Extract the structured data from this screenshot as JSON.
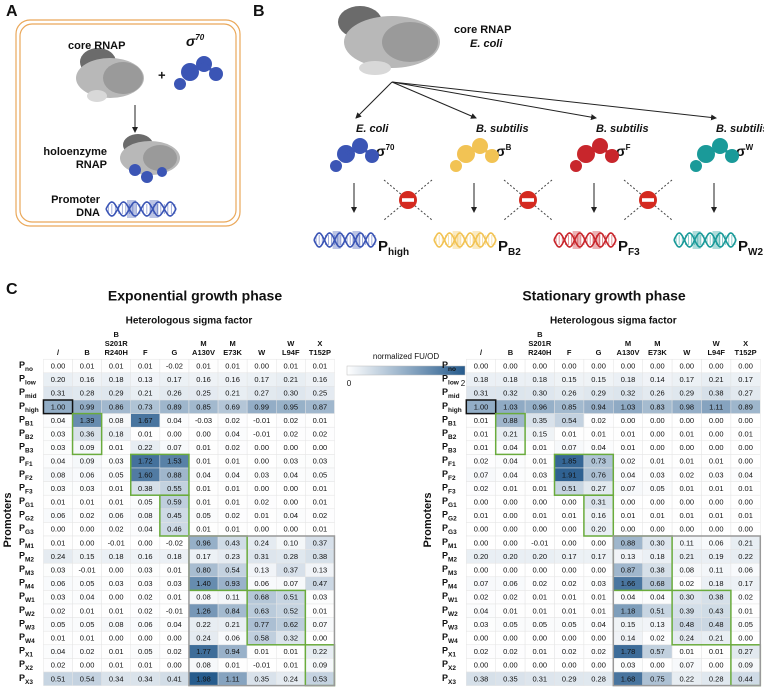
{
  "panels": {
    "a": {
      "letter": "A",
      "core": "core RNAP",
      "sigma": {
        "main": "σ",
        "sup": "70"
      },
      "plus": "+",
      "holoenzyme": [
        "holoenzyme",
        "RNAP"
      ],
      "promoter": [
        "Promoter",
        "DNA"
      ]
    },
    "b": {
      "letter": "B",
      "core": [
        "core RNAP",
        "E. coli"
      ],
      "sigmas": [
        {
          "species": "E. coli",
          "main": "σ",
          "sup": "70",
          "promoter": "P",
          "promoter_sub": "high",
          "color": "#3b55b5"
        },
        {
          "species": "B. subtilis",
          "main": "σ",
          "sup": "B",
          "promoter": "P",
          "promoter_sub": "B2",
          "color": "#f2c354"
        },
        {
          "species": "B. subtilis",
          "main": "σ",
          "sup": "F",
          "promoter": "P",
          "promoter_sub": "F3",
          "color": "#c8262c"
        },
        {
          "species": "B. subtilis",
          "main": "σ",
          "sup": "W",
          "promoter": "P",
          "promoter_sub": "W2",
          "color": "#1a9a99"
        }
      ]
    }
  },
  "c": {
    "letter": "C",
    "colorbar": {
      "label": "normalized FU/OD",
      "min": 0,
      "max": 2
    },
    "columns": [
      [
        "/"
      ],
      [
        "B"
      ],
      [
        "B",
        "S201R",
        "R240H"
      ],
      [
        "F"
      ],
      [
        "G"
      ],
      [
        "M",
        "A130V"
      ],
      [
        "M",
        "E73K"
      ],
      [
        "W"
      ],
      [
        "W",
        "L94F"
      ],
      [
        "X",
        "T152P"
      ]
    ],
    "tables": [
      {
        "title": "Exponential growth phase",
        "subtitle": "Heterologous sigma factor",
        "axis": "Promoters",
        "rows": [
          {
            "label": "P",
            "sub": "no",
            "values": [
              "0.00",
              "0.01",
              "0.01",
              "0.01",
              "-0.02",
              "0.01",
              "0.01",
              "0.00",
              "0.01",
              "0.01"
            ]
          },
          {
            "label": "P",
            "sub": "low",
            "values": [
              "0.20",
              "0.16",
              "0.18",
              "0.13",
              "0.17",
              "0.16",
              "0.16",
              "0.17",
              "0.21",
              "0.16"
            ]
          },
          {
            "label": "P",
            "sub": "mid",
            "values": [
              "0.31",
              "0.28",
              "0.29",
              "0.21",
              "0.26",
              "0.25",
              "0.21",
              "0.27",
              "0.30",
              "0.25"
            ]
          },
          {
            "label": "P",
            "sub": "high",
            "values": [
              "1.00",
              "0.99",
              "0.86",
              "0.73",
              "0.89",
              "0.85",
              "0.69",
              "0.99",
              "0.95",
              "0.87"
            ]
          },
          {
            "label": "P",
            "sub": "B1",
            "values": [
              "0.04",
              "1.39",
              "0.08",
              "1.67",
              "0.04",
              "-0.03",
              "0.02",
              "-0.01",
              "0.02",
              "0.01"
            ]
          },
          {
            "label": "P",
            "sub": "B2",
            "values": [
              "0.03",
              "0.36",
              "0.18",
              "0.01",
              "0.00",
              "0.00",
              "0.04",
              "-0.01",
              "0.02",
              "0.02"
            ]
          },
          {
            "label": "P",
            "sub": "B3",
            "values": [
              "0.03",
              "0.09",
              "0.01",
              "0.22",
              "0.07",
              "0.01",
              "0.02",
              "0.00",
              "0.00",
              "0.00"
            ]
          },
          {
            "label": "P",
            "sub": "F1",
            "values": [
              "0.04",
              "0.09",
              "0.03",
              "1.72",
              "1.53",
              "0.01",
              "0.01",
              "0.00",
              "0.03",
              "0.03"
            ]
          },
          {
            "label": "P",
            "sub": "F2",
            "values": [
              "0.08",
              "0.06",
              "0.05",
              "1.60",
              "0.88",
              "0.04",
              "0.04",
              "0.03",
              "0.04",
              "0.05"
            ]
          },
          {
            "label": "P",
            "sub": "F3",
            "values": [
              "0.03",
              "0.03",
              "0.01",
              "0.38",
              "0.55",
              "0.01",
              "0.01",
              "0.00",
              "0.00",
              "0.01"
            ]
          },
          {
            "label": "P",
            "sub": "G1",
            "values": [
              "0.01",
              "0.01",
              "0.01",
              "0.05",
              "0.59",
              "0.01",
              "0.01",
              "0.02",
              "0.00",
              "0.01"
            ]
          },
          {
            "label": "P",
            "sub": "G2",
            "values": [
              "0.06",
              "0.02",
              "0.06",
              "0.08",
              "0.45",
              "0.05",
              "0.02",
              "0.01",
              "0.04",
              "0.02"
            ]
          },
          {
            "label": "P",
            "sub": "G3",
            "values": [
              "0.00",
              "0.00",
              "0.02",
              "0.04",
              "0.46",
              "0.01",
              "0.01",
              "0.00",
              "0.00",
              "0.01"
            ]
          },
          {
            "label": "P",
            "sub": "M1",
            "values": [
              "0.01",
              "0.00",
              "-0.01",
              "0.00",
              "-0.02",
              "0.96",
              "0.43",
              "0.24",
              "0.10",
              "0.37"
            ]
          },
          {
            "label": "P",
            "sub": "M2",
            "values": [
              "0.24",
              "0.15",
              "0.18",
              "0.16",
              "0.18",
              "0.17",
              "0.23",
              "0.31",
              "0.28",
              "0.38"
            ]
          },
          {
            "label": "P",
            "sub": "M3",
            "values": [
              "0.03",
              "-0.01",
              "0.00",
              "0.03",
              "0.01",
              "0.80",
              "0.54",
              "0.13",
              "0.37",
              "0.13"
            ]
          },
          {
            "label": "P",
            "sub": "M4",
            "values": [
              "0.06",
              "0.05",
              "0.03",
              "0.03",
              "0.03",
              "1.40",
              "0.93",
              "0.06",
              "0.07",
              "0.47"
            ]
          },
          {
            "label": "P",
            "sub": "W1",
            "values": [
              "0.03",
              "0.04",
              "0.00",
              "0.02",
              "0.01",
              "0.08",
              "0.11",
              "0.68",
              "0.51",
              "0.03"
            ]
          },
          {
            "label": "P",
            "sub": "W2",
            "values": [
              "0.02",
              "0.01",
              "0.01",
              "0.02",
              "-0.01",
              "1.26",
              "0.84",
              "0.63",
              "0.52",
              "0.01"
            ]
          },
          {
            "label": "P",
            "sub": "W3",
            "values": [
              "0.05",
              "0.05",
              "0.08",
              "0.06",
              "0.04",
              "0.22",
              "0.21",
              "0.77",
              "0.62",
              "0.07"
            ]
          },
          {
            "label": "P",
            "sub": "W4",
            "values": [
              "0.01",
              "0.01",
              "0.00",
              "0.00",
              "0.00",
              "0.24",
              "0.06",
              "0.58",
              "0.32",
              "0.00"
            ]
          },
          {
            "label": "P",
            "sub": "X1",
            "values": [
              "0.04",
              "0.02",
              "0.01",
              "0.05",
              "0.02",
              "1.77",
              "0.94",
              "0.01",
              "0.01",
              "0.22"
            ]
          },
          {
            "label": "P",
            "sub": "X2",
            "values": [
              "0.02",
              "0.00",
              "0.01",
              "0.01",
              "0.00",
              "0.08",
              "0.01",
              "-0.01",
              "0.01",
              "0.09"
            ]
          },
          {
            "label": "P",
            "sub": "X3",
            "values": [
              "0.51",
              "0.54",
              "0.34",
              "0.34",
              "0.41",
              "1.98",
              "1.11",
              "0.35",
              "0.24",
              "0.53"
            ]
          }
        ]
      },
      {
        "title": "Stationary growth phase",
        "subtitle": "Heterologous sigma factor",
        "axis": "Promoters",
        "rows": [
          {
            "label": "P",
            "sub": "no",
            "values": [
              "0.00",
              "0.00",
              "0.00",
              "0.00",
              "0.00",
              "0.00",
              "0.00",
              "0.00",
              "0.00",
              "0.00"
            ]
          },
          {
            "label": "P",
            "sub": "low",
            "values": [
              "0.18",
              "0.18",
              "0.18",
              "0.15",
              "0.15",
              "0.18",
              "0.14",
              "0.17",
              "0.21",
              "0.17"
            ]
          },
          {
            "label": "P",
            "sub": "mid",
            "values": [
              "0.31",
              "0.32",
              "0.30",
              "0.26",
              "0.29",
              "0.32",
              "0.26",
              "0.29",
              "0.38",
              "0.27"
            ]
          },
          {
            "label": "P",
            "sub": "high",
            "values": [
              "1.00",
              "1.03",
              "0.96",
              "0.85",
              "0.94",
              "1.03",
              "0.83",
              "0.98",
              "1.11",
              "0.89"
            ]
          },
          {
            "label": "P",
            "sub": "B1",
            "values": [
              "0.01",
              "0.88",
              "0.35",
              "0.54",
              "0.02",
              "0.00",
              "0.00",
              "0.00",
              "0.00",
              "0.00"
            ]
          },
          {
            "label": "P",
            "sub": "B2",
            "values": [
              "0.01",
              "0.21",
              "0.15",
              "0.01",
              "0.01",
              "0.01",
              "0.00",
              "0.01",
              "0.00",
              "0.01"
            ]
          },
          {
            "label": "P",
            "sub": "B3",
            "values": [
              "0.01",
              "0.04",
              "0.01",
              "0.07",
              "0.04",
              "0.01",
              "0.00",
              "0.00",
              "0.00",
              "0.00"
            ]
          },
          {
            "label": "P",
            "sub": "F1",
            "values": [
              "0.02",
              "0.04",
              "0.01",
              "1.85",
              "0.73",
              "0.02",
              "0.01",
              "0.01",
              "0.01",
              "0.00"
            ]
          },
          {
            "label": "P",
            "sub": "F2",
            "values": [
              "0.07",
              "0.04",
              "0.03",
              "1.91",
              "0.76",
              "0.04",
              "0.03",
              "0.02",
              "0.03",
              "0.04"
            ]
          },
          {
            "label": "P",
            "sub": "F3",
            "values": [
              "0.02",
              "0.01",
              "0.01",
              "0.51",
              "0.27",
              "0.07",
              "0.05",
              "0.01",
              "0.01",
              "0.01"
            ]
          },
          {
            "label": "P",
            "sub": "G1",
            "values": [
              "0.00",
              "0.00",
              "0.00",
              "0.00",
              "0.31",
              "0.00",
              "0.00",
              "0.00",
              "0.00",
              "0.00"
            ]
          },
          {
            "label": "P",
            "sub": "G2",
            "values": [
              "0.01",
              "0.00",
              "0.01",
              "0.01",
              "0.16",
              "0.01",
              "0.01",
              "0.01",
              "0.01",
              "0.01"
            ]
          },
          {
            "label": "P",
            "sub": "G3",
            "values": [
              "0.00",
              "0.00",
              "0.00",
              "0.00",
              "0.20",
              "0.00",
              "0.00",
              "0.00",
              "0.00",
              "0.00"
            ]
          },
          {
            "label": "P",
            "sub": "M1",
            "values": [
              "0.00",
              "0.00",
              "-0.01",
              "0.00",
              "0.00",
              "0.88",
              "0.30",
              "0.11",
              "0.06",
              "0.21"
            ]
          },
          {
            "label": "P",
            "sub": "M2",
            "values": [
              "0.20",
              "0.20",
              "0.20",
              "0.17",
              "0.17",
              "0.13",
              "0.18",
              "0.21",
              "0.19",
              "0.22"
            ]
          },
          {
            "label": "P",
            "sub": "M3",
            "values": [
              "0.00",
              "0.00",
              "0.00",
              "0.00",
              "0.00",
              "0.87",
              "0.38",
              "0.08",
              "0.11",
              "0.06"
            ]
          },
          {
            "label": "P",
            "sub": "M4",
            "values": [
              "0.07",
              "0.06",
              "0.02",
              "0.02",
              "0.03",
              "1.66",
              "0.68",
              "0.02",
              "0.18",
              "0.17"
            ]
          },
          {
            "label": "P",
            "sub": "W1",
            "values": [
              "0.02",
              "0.02",
              "0.01",
              "0.01",
              "0.01",
              "0.04",
              "0.04",
              "0.30",
              "0.38",
              "0.02"
            ]
          },
          {
            "label": "P",
            "sub": "W2",
            "values": [
              "0.04",
              "0.01",
              "0.01",
              "0.01",
              "0.01",
              "1.18",
              "0.51",
              "0.39",
              "0.43",
              "0.01"
            ]
          },
          {
            "label": "P",
            "sub": "W3",
            "values": [
              "0.03",
              "0.05",
              "0.05",
              "0.05",
              "0.04",
              "0.15",
              "0.13",
              "0.48",
              "0.48",
              "0.05"
            ]
          },
          {
            "label": "P",
            "sub": "W4",
            "values": [
              "0.00",
              "0.00",
              "0.00",
              "0.00",
              "0.00",
              "0.14",
              "0.02",
              "0.24",
              "0.21",
              "0.00"
            ]
          },
          {
            "label": "P",
            "sub": "X1",
            "values": [
              "0.02",
              "0.02",
              "0.01",
              "0.02",
              "0.02",
              "1.78",
              "0.57",
              "0.01",
              "0.01",
              "0.27"
            ]
          },
          {
            "label": "P",
            "sub": "X2",
            "values": [
              "0.00",
              "0.00",
              "0.00",
              "0.00",
              "0.00",
              "0.03",
              "0.00",
              "0.07",
              "0.00",
              "0.09"
            ]
          },
          {
            "label": "P",
            "sub": "X3",
            "values": [
              "0.38",
              "0.35",
              "0.31",
              "0.29",
              "0.28",
              "1.68",
              "0.75",
              "0.22",
              "0.28",
              "0.44"
            ]
          }
        ]
      }
    ]
  }
}
